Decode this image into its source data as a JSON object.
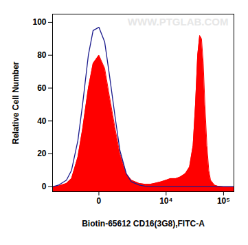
{
  "chart_data": {
    "type": "area",
    "xlabel": "Biotin-65612 CD16(3G8),FITC-A",
    "ylabel": "Relative Cell Number",
    "watermark": "WWW.PTGLAB.COM",
    "x": [
      -4000,
      -3000,
      -2000,
      -1500,
      -1000,
      -700,
      -400,
      -200,
      0,
      200,
      400,
      700,
      1000,
      1500,
      2000,
      3000,
      4000,
      5000,
      6000,
      8000,
      10000,
      12000,
      15000,
      18000,
      22000,
      26000,
      30000,
      33000,
      36000,
      39000,
      42000,
      45000,
      48000,
      52000,
      56000,
      60000,
      70000,
      80000,
      100000,
      150000
    ],
    "series": [
      {
        "type": "area",
        "color": "#ff0000",
        "values": [
          0,
          0.5,
          2,
          5,
          18,
          35,
          60,
          75,
          80,
          72,
          55,
          35,
          20,
          8,
          4,
          2,
          1.5,
          1.5,
          2,
          3,
          4,
          5,
          5,
          6,
          8,
          12,
          25,
          50,
          80,
          92,
          90,
          75,
          50,
          25,
          10,
          4,
          1,
          0.3,
          0,
          0
        ]
      },
      {
        "type": "line",
        "color": "#1a1a8c",
        "values": [
          0,
          1,
          4,
          10,
          28,
          50,
          80,
          95,
          97,
          88,
          68,
          42,
          22,
          8,
          3,
          1,
          0.3,
          0,
          0,
          0,
          0,
          0,
          0,
          0,
          0,
          0,
          0,
          0,
          0,
          0,
          0,
          0,
          0,
          0,
          0,
          0,
          0,
          0,
          0,
          0
        ]
      }
    ],
    "xlim": [
      -4000,
      150000
    ],
    "xticks": [
      0,
      {
        "value": 10000,
        "label": "10⁴"
      },
      {
        "value": 100000,
        "label": "10⁵"
      }
    ],
    "ylim": [
      -3,
      105
    ],
    "yticks": [
      0,
      20,
      40,
      60,
      80,
      100
    ],
    "grid": false
  }
}
